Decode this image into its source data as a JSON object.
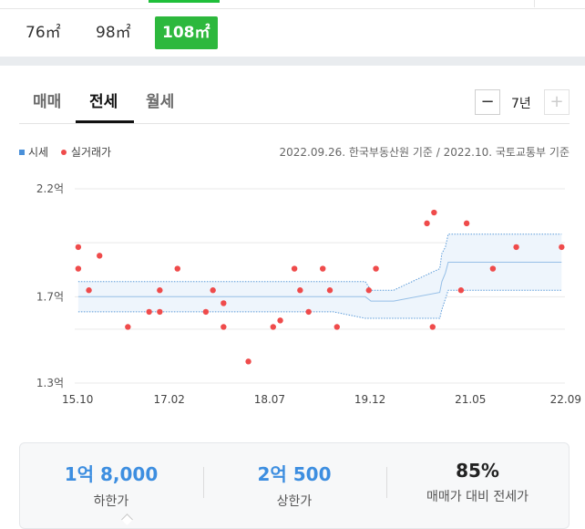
{
  "sizes": [
    {
      "label": "76㎡",
      "active": false
    },
    {
      "label": "98㎡",
      "active": false
    },
    {
      "label": "108㎡",
      "active": true
    }
  ],
  "tabs": [
    {
      "label": "매매",
      "active": false
    },
    {
      "label": "전세",
      "active": true
    },
    {
      "label": "월세",
      "active": false
    }
  ],
  "period": {
    "minus": "−",
    "value": "7년",
    "plus": "+"
  },
  "legend": {
    "market_label": "시세",
    "trade_label": "실거래가"
  },
  "source_text": "2022.09.26. 한국부동산원 기준 / 2022.10. 국토교통부 기준",
  "chart_data": {
    "type": "scatter",
    "y_unit": "억",
    "yticks": [
      {
        "value": 1.3,
        "label": "1.3억"
      },
      {
        "value": 1.7,
        "label": "1.7억"
      },
      {
        "value": 2.2,
        "label": "2.2억"
      }
    ],
    "ylim": [
      1.3,
      2.2
    ],
    "xticks": [
      {
        "value": 2015.75,
        "label": "15.10"
      },
      {
        "value": 2017.083,
        "label": "17.02"
      },
      {
        "value": 2018.5,
        "label": "18.07"
      },
      {
        "value": 2019.917,
        "label": "19.12"
      },
      {
        "value": 2021.333,
        "label": "21.05"
      },
      {
        "value": 2022.667,
        "label": "22.09"
      }
    ],
    "xlim": [
      2015.75,
      2022.667
    ],
    "band": {
      "x": [
        2015.8,
        2016.9,
        2018.5,
        2019.4,
        2019.85,
        2019.93,
        2020.25,
        2020.9,
        2020.93,
        2020.98,
        2021.02,
        2021.05,
        2022.62
      ],
      "upper": [
        1.77,
        1.77,
        1.77,
        1.77,
        1.77,
        1.73,
        1.73,
        1.83,
        1.9,
        1.93,
        1.99,
        1.99,
        1.99
      ],
      "lower": [
        1.63,
        1.63,
        1.63,
        1.63,
        1.6,
        1.6,
        1.6,
        1.6,
        1.64,
        1.69,
        1.73,
        1.73,
        1.73
      ],
      "mid": [
        1.7,
        1.7,
        1.7,
        1.7,
        1.7,
        1.68,
        1.68,
        1.72,
        1.77,
        1.81,
        1.86,
        1.86,
        1.86
      ]
    },
    "trades": [
      {
        "x": 2015.8,
        "y": 1.93
      },
      {
        "x": 2015.8,
        "y": 1.83
      },
      {
        "x": 2015.95,
        "y": 1.73
      },
      {
        "x": 2016.1,
        "y": 1.89
      },
      {
        "x": 2016.5,
        "y": 1.56
      },
      {
        "x": 2016.8,
        "y": 1.63
      },
      {
        "x": 2016.95,
        "y": 1.73
      },
      {
        "x": 2016.95,
        "y": 1.63
      },
      {
        "x": 2017.2,
        "y": 1.83
      },
      {
        "x": 2017.6,
        "y": 1.63
      },
      {
        "x": 2017.7,
        "y": 1.73
      },
      {
        "x": 2017.85,
        "y": 1.67
      },
      {
        "x": 2017.85,
        "y": 1.56
      },
      {
        "x": 2018.2,
        "y": 1.4
      },
      {
        "x": 2018.55,
        "y": 1.56
      },
      {
        "x": 2018.65,
        "y": 1.59
      },
      {
        "x": 2018.85,
        "y": 1.83
      },
      {
        "x": 2018.93,
        "y": 1.73
      },
      {
        "x": 2019.05,
        "y": 1.63
      },
      {
        "x": 2019.25,
        "y": 1.83
      },
      {
        "x": 2019.35,
        "y": 1.73
      },
      {
        "x": 2019.45,
        "y": 1.56
      },
      {
        "x": 2019.9,
        "y": 1.73
      },
      {
        "x": 2020.0,
        "y": 1.83
      },
      {
        "x": 2020.72,
        "y": 2.04
      },
      {
        "x": 2020.82,
        "y": 2.09
      },
      {
        "x": 2020.8,
        "y": 1.56
      },
      {
        "x": 2021.2,
        "y": 1.73
      },
      {
        "x": 2021.28,
        "y": 2.04
      },
      {
        "x": 2021.65,
        "y": 1.83
      },
      {
        "x": 2021.98,
        "y": 1.93
      },
      {
        "x": 2022.62,
        "y": 1.93
      }
    ],
    "colors": {
      "trade": "#ef4b4b",
      "band_fill": "#eef5fc",
      "band_line": "#5b9bd9",
      "grid": "#e9e9e9"
    }
  },
  "summary": {
    "low_value": "1억 8,000",
    "low_label": "하한가",
    "high_value": "2억 500",
    "high_label": "상한가",
    "ratio_value": "85%",
    "ratio_label": "매매가 대비 전세가"
  }
}
